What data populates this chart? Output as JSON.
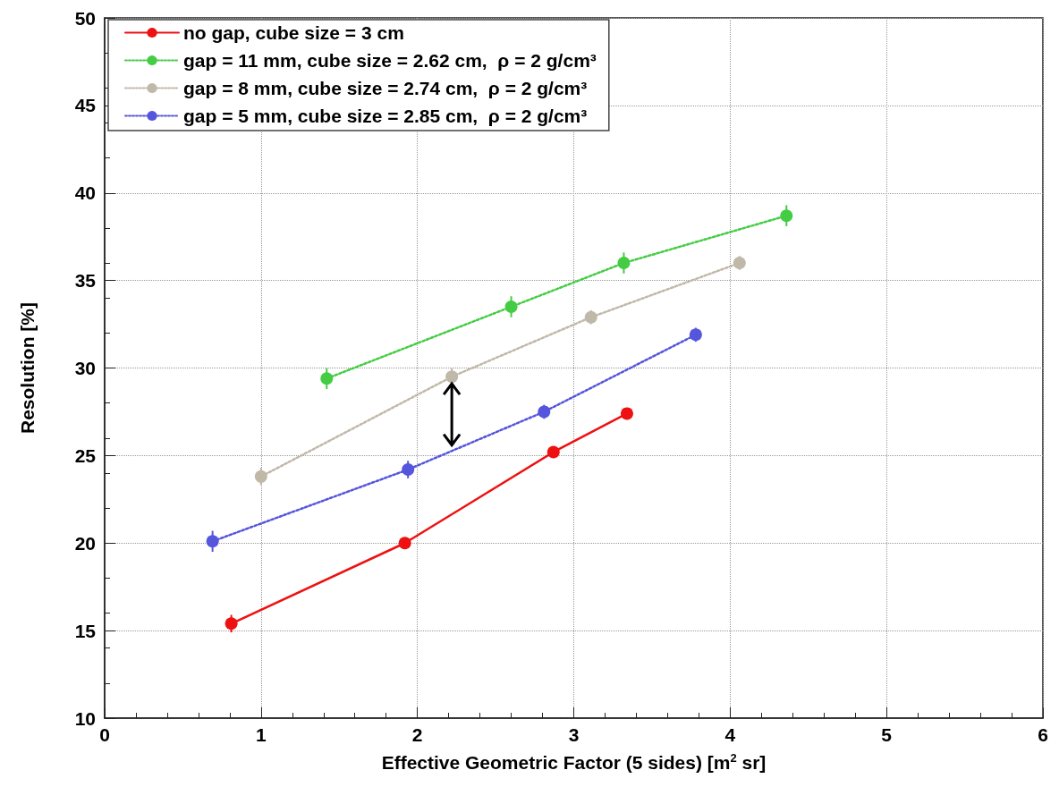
{
  "chart_data": {
    "type": "line",
    "xlabel": "Effective Geometric Factor (5 sides) [m$^{2}$ sr]",
    "ylabel": "Resolution [%]",
    "xlim": [
      0,
      6
    ],
    "xticks": [
      0,
      1,
      2,
      3,
      4,
      5,
      6
    ],
    "ylim": [
      10,
      50
    ],
    "yticks": [
      10,
      15,
      20,
      25,
      30,
      35,
      40,
      45,
      50
    ],
    "grid": true,
    "legend": "top",
    "marker": "circle",
    "series": [
      {
        "name": "no gap, cube size = 3 cm",
        "color": "#ee1111",
        "line_style": "solid",
        "x": [
          0.81,
          1.92,
          2.87,
          3.34
        ],
        "values": [
          15.4,
          20,
          25.2,
          27.4
        ],
        "errors": [
          0.5,
          0.3,
          0.3,
          0.3
        ]
      },
      {
        "name": "gap = 11 mm, cube size = 2.62 cm,  ρ = 2 g/cm³",
        "color": "#44cc44",
        "line_style": "dotted",
        "x": [
          1.42,
          2.6,
          3.32,
          4.36
        ],
        "values": [
          29.4,
          33.5,
          36.0,
          38.7
        ],
        "errors": [
          0.6,
          0.6,
          0.6,
          0.6
        ]
      },
      {
        "name": "gap = 8 mm, cube size = 2.74 cm,  ρ = 2 g/cm³",
        "color": "#c0b8a8",
        "line_style": "dotted",
        "x": [
          1.0,
          2.22,
          3.11,
          4.06
        ],
        "values": [
          23.8,
          29.5,
          32.9,
          36.0
        ],
        "errors": [
          0.5,
          0.5,
          0.4,
          0.4
        ]
      },
      {
        "name": "gap = 5 mm, cube size = 2.85 cm,  ρ = 2 g/cm³",
        "color": "#5555dd",
        "line_style": "dotted",
        "x": [
          0.69,
          1.94,
          2.81,
          3.78
        ],
        "values": [
          20.1,
          24.2,
          27.5,
          31.9
        ],
        "errors": [
          0.6,
          0.5,
          0.4,
          0.4
        ]
      }
    ]
  }
}
